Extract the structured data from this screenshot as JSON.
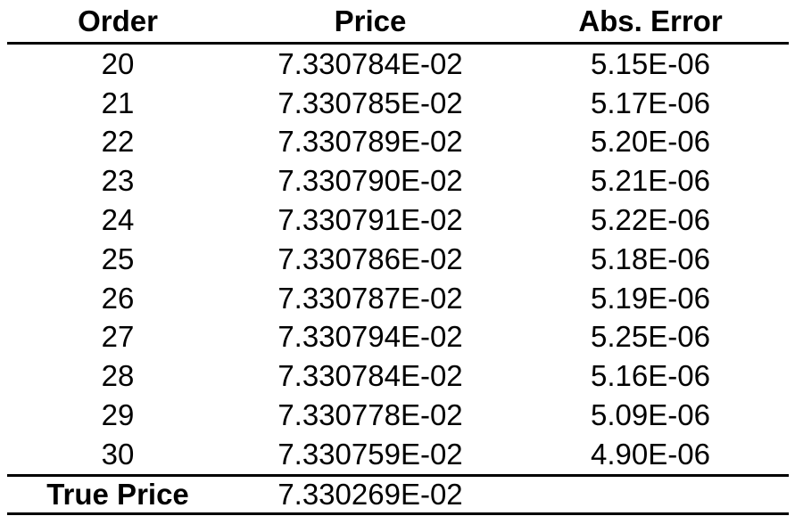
{
  "headers": {
    "order": "Order",
    "price": "Price",
    "error": "Abs. Error"
  },
  "rows": [
    {
      "order": "20",
      "price": "7.330784E-02",
      "error": "5.15E-06"
    },
    {
      "order": "21",
      "price": "7.330785E-02",
      "error": "5.17E-06"
    },
    {
      "order": "22",
      "price": "7.330789E-02",
      "error": "5.20E-06"
    },
    {
      "order": "23",
      "price": "7.330790E-02",
      "error": "5.21E-06"
    },
    {
      "order": "24",
      "price": "7.330791E-02",
      "error": "5.22E-06"
    },
    {
      "order": "25",
      "price": "7.330786E-02",
      "error": "5.18E-06"
    },
    {
      "order": "26",
      "price": "7.330787E-02",
      "error": "5.19E-06"
    },
    {
      "order": "27",
      "price": "7.330794E-02",
      "error": "5.25E-06"
    },
    {
      "order": "28",
      "price": "7.330784E-02",
      "error": "5.16E-06"
    },
    {
      "order": "29",
      "price": "7.330778E-02",
      "error": "5.09E-06"
    },
    {
      "order": "30",
      "price": "7.330759E-02",
      "error": "4.90E-06"
    }
  ],
  "true_price": {
    "label": "True Price",
    "price": "7.330269E-02",
    "error": ""
  }
}
